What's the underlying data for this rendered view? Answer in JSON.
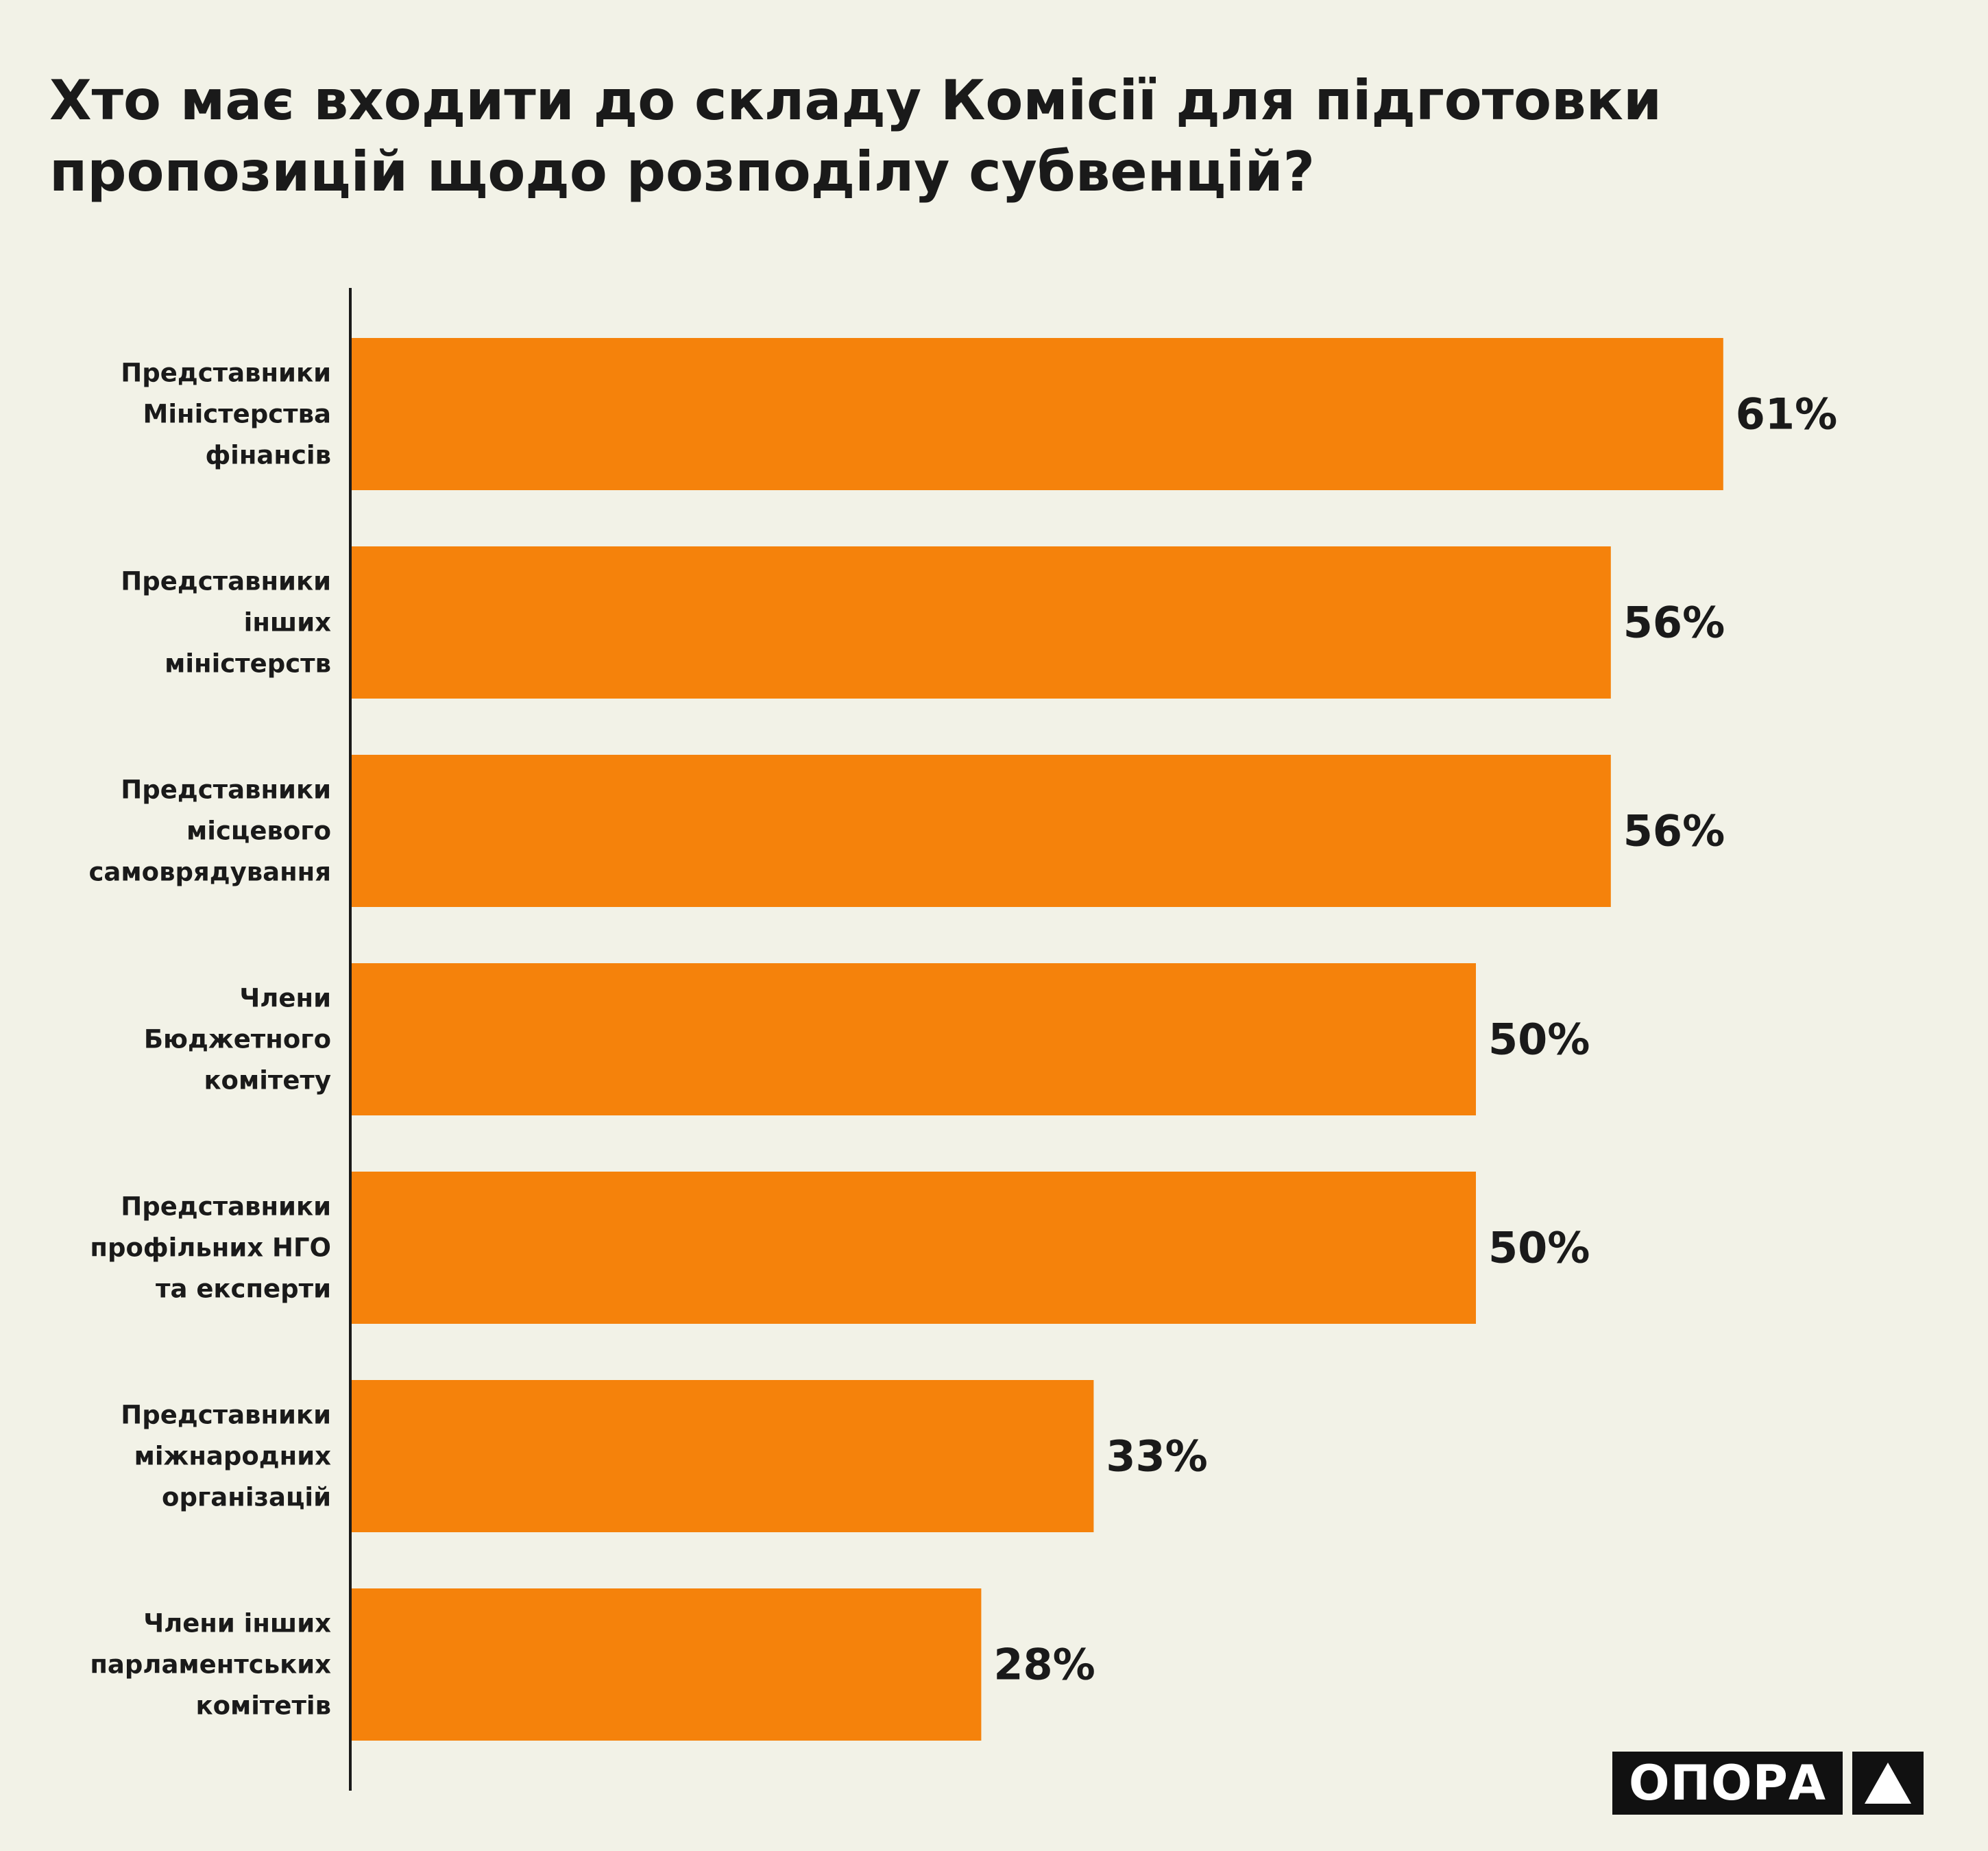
{
  "title_lines": [
    "Хто має входити до складу Комісії для підготовки",
    "пропозицій щодо розподілу субвенцій?"
  ],
  "logo": {
    "text": "ОПОРА",
    "mark_icon": "triangle-up-icon"
  },
  "colors": {
    "background": "#f2f2e7",
    "bar": "#f5820b",
    "text": "#1a1a1a",
    "logo": "#111111"
  },
  "chart_data": {
    "type": "bar",
    "orientation": "horizontal",
    "categories": [
      [
        "Представники",
        "Міністерства",
        "фінансів"
      ],
      [
        "Представники",
        "інших",
        "міністерств"
      ],
      [
        "Представники",
        "місцевого",
        "самоврядування"
      ],
      [
        "Члени",
        "Бюджетного",
        "комітету"
      ],
      [
        "Представники",
        "профільних НГО",
        "та експерти"
      ],
      [
        "Представники",
        "міжнародних",
        "організацій"
      ],
      [
        "Члени інших",
        "парламентських",
        "комітетів"
      ]
    ],
    "values": [
      61,
      56,
      56,
      50,
      50,
      33,
      28
    ],
    "value_labels": [
      "61%",
      "56%",
      "56%",
      "50%",
      "50%",
      "33%",
      "28%"
    ],
    "unit": "%",
    "grid": false,
    "legend": false
  }
}
